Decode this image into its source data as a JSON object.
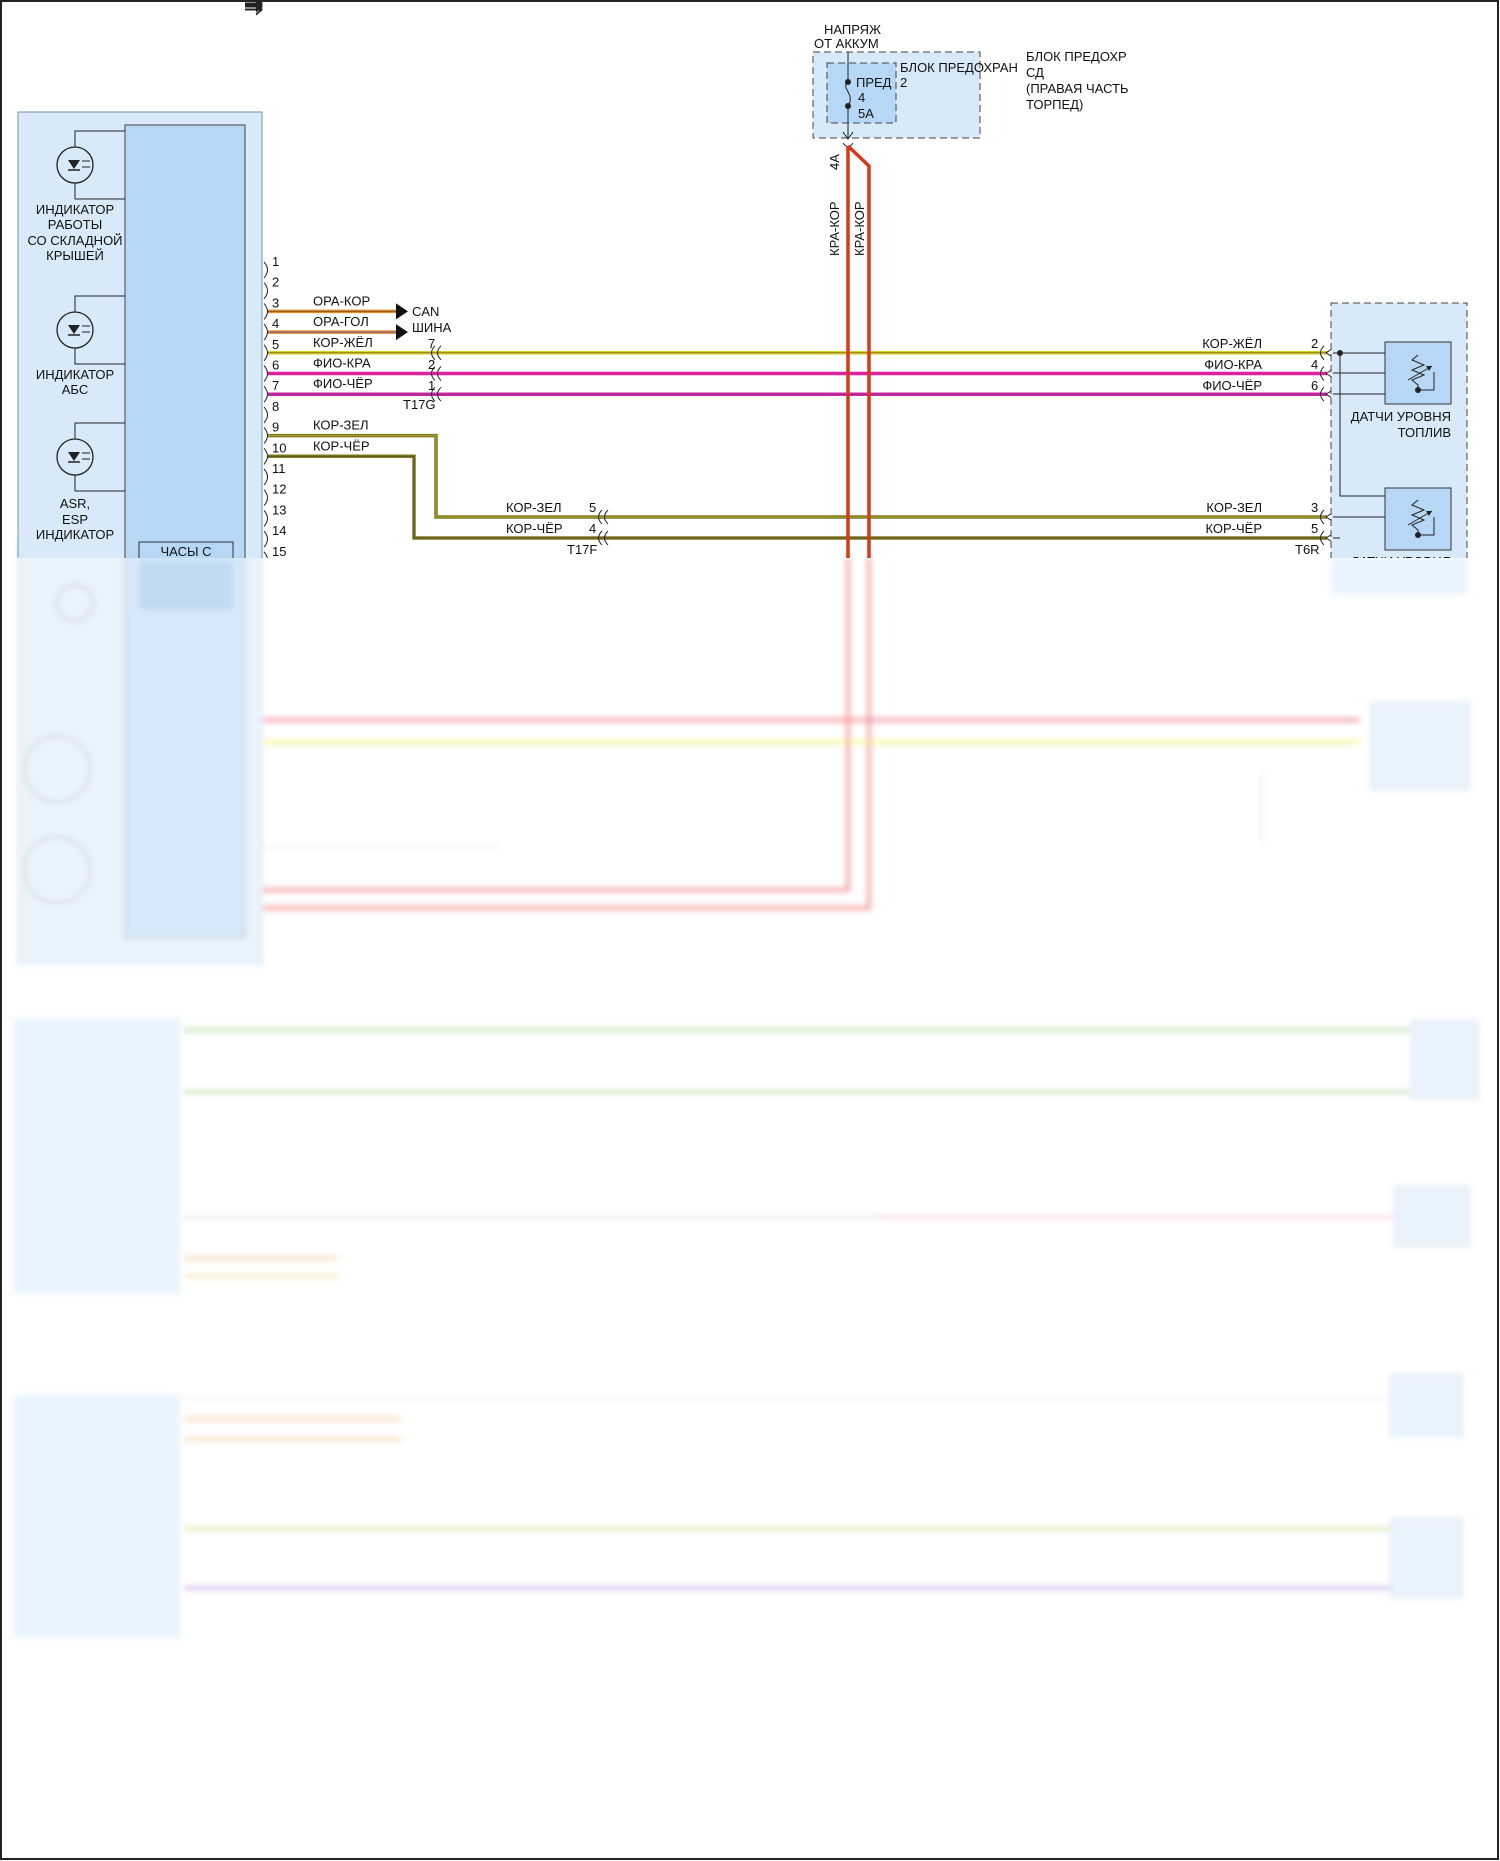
{
  "colors": {
    "module_fill": "#d8eafa",
    "module_inner": "#b6d8f6",
    "wire_orange": "#e58a2a",
    "wire_brown_core": "#8a5a20",
    "wire_yellow": "#d9cf1e",
    "wire_magenta": "#e0219f",
    "wire_olive": "#7f7a22",
    "wire_red": "#d33a1c"
  },
  "left_module": {
    "indicators": [
      {
        "icon": "led-indicator-icon",
        "label_lines": [
          "ИНДИКАТОР",
          "РАБОТЫ",
          "СО СКЛАДНОЙ",
          "КРЫШЕЙ"
        ]
      },
      {
        "icon": "led-indicator-icon",
        "label_lines": [
          "ИНДИКАТОР",
          "АБС"
        ]
      },
      {
        "icon": "led-indicator-icon",
        "label_lines": [
          "ASR,",
          "ESP",
          "ИНДИКАТОР"
        ]
      }
    ],
    "clock_label": "ЧАСЫ С",
    "pins": [
      "1",
      "2",
      "3",
      "4",
      "5",
      "6",
      "7",
      "8",
      "9",
      "10",
      "11",
      "12",
      "13",
      "14",
      "15"
    ]
  },
  "can_bus": {
    "label_lines": [
      "CAN",
      "ШИНА"
    ]
  },
  "wires_left": [
    {
      "pin": "3",
      "label": "ОРА-КОР"
    },
    {
      "pin": "4",
      "label": "ОРА-ГОЛ"
    },
    {
      "pin": "5",
      "label": "КОР-ЖЁЛ"
    },
    {
      "pin": "6",
      "label": "ФИО-КРА"
    },
    {
      "pin": "7",
      "label": "ФИО-ЧЁР"
    },
    {
      "pin": "9",
      "label": "КОР-ЗЕЛ"
    },
    {
      "pin": "10",
      "label": "КОР-ЧЁР"
    }
  ],
  "connector_t17g": {
    "name": "T17G",
    "pins": [
      "7",
      "2",
      "1"
    ]
  },
  "connector_t17f": {
    "name": "T17F",
    "pins": [
      "5",
      "4"
    ],
    "labels": [
      "КОР-ЗЕЛ",
      "КОР-ЧЁР"
    ]
  },
  "connector_t6r": {
    "name": "T6R",
    "pins": [
      "2",
      "4",
      "6",
      "3",
      "5"
    ],
    "labels": [
      "КОР-ЖЁЛ",
      "ФИО-КРА",
      "ФИО-ЧЁР",
      "КОР-ЗЕЛ",
      "КОР-ЧЁР"
    ]
  },
  "fuse_block": {
    "supply_lines": [
      "НАПРЯЖ",
      "ОТ АККУМ"
    ],
    "inner_label": "БЛОК ПРЕДОХРАН",
    "inner_number": "2",
    "fuse_lines": [
      "ПРЕД",
      "4",
      "5A"
    ],
    "outer_label_lines": [
      "БЛОК ПРЕДОХР",
      "СД",
      "(ПРАВАЯ ЧАСТЬ",
      "ТОРПЕД)"
    ],
    "output_pin": "4A",
    "wire_labels": [
      "КРА-КОР",
      "КРА-КОР"
    ]
  },
  "right_module": {
    "sensor1_lines": [
      "ДАТЧИ УРОВНЯ",
      "ТОПЛИВ"
    ],
    "sensor2_label": "ДАТЧИ УРОВНЯ"
  }
}
